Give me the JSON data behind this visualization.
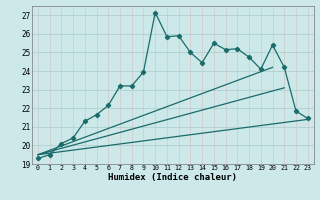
{
  "title": "",
  "xlabel": "Humidex (Indice chaleur)",
  "bg_color": "#cce8e8",
  "grid_color": "#aacccc",
  "line_color": "#1a6b6b",
  "xlim": [
    -0.5,
    23.5
  ],
  "ylim": [
    19,
    27.5
  ],
  "yticks": [
    19,
    20,
    21,
    22,
    23,
    24,
    25,
    26,
    27
  ],
  "xticks": [
    0,
    1,
    2,
    3,
    4,
    5,
    6,
    7,
    8,
    9,
    10,
    11,
    12,
    13,
    14,
    15,
    16,
    17,
    18,
    19,
    20,
    21,
    22,
    23
  ],
  "line1_x": [
    0,
    1,
    2,
    3,
    4,
    5,
    6,
    7,
    8,
    9,
    10,
    11,
    12,
    13,
    14,
    15,
    16,
    17,
    18,
    19,
    20,
    21,
    22,
    23
  ],
  "line1_y": [
    19.3,
    19.5,
    20.1,
    20.4,
    21.3,
    21.65,
    22.15,
    23.2,
    23.2,
    23.95,
    27.15,
    25.85,
    25.9,
    25.0,
    24.45,
    25.5,
    25.15,
    25.2,
    24.75,
    24.1,
    25.4,
    24.2,
    21.85,
    21.45
  ],
  "line2_x": [
    0,
    20
  ],
  "line2_y": [
    19.5,
    24.2
  ],
  "line3_x": [
    0,
    21
  ],
  "line3_y": [
    19.5,
    23.1
  ],
  "line4_x": [
    0,
    23
  ],
  "line4_y": [
    19.5,
    21.4
  ]
}
